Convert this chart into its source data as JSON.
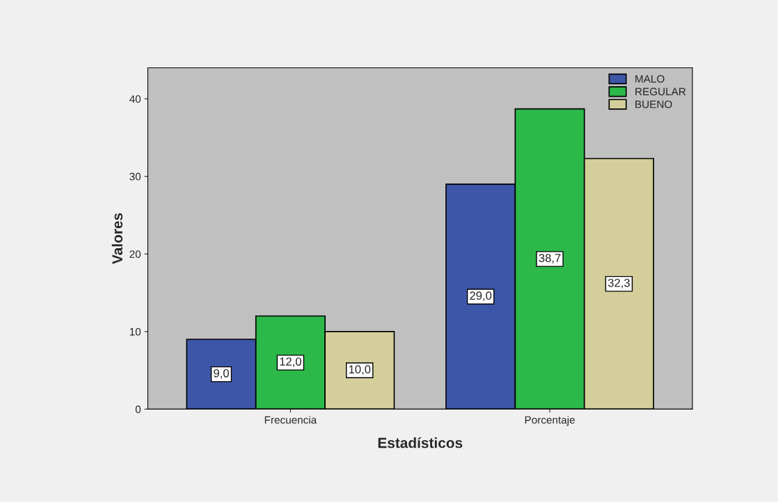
{
  "chart_data": {
    "type": "bar",
    "xlabel": "Estadísticos",
    "ylabel": "Valores",
    "categories": [
      "Frecuencia",
      "Porcentaje"
    ],
    "series": [
      {
        "name": "MALO",
        "color": "#3d56a8",
        "values": [
          9.0,
          29.0
        ],
        "value_labels": [
          "9,0",
          "29,0"
        ]
      },
      {
        "name": "REGULAR",
        "color": "#2db84a",
        "values": [
          12.0,
          38.7
        ],
        "value_labels": [
          "12,0",
          "38,7"
        ]
      },
      {
        "name": "BUENO",
        "color": "#d4cf9a",
        "values": [
          10.0,
          32.3
        ],
        "value_labels": [
          "10,0",
          "32,3"
        ]
      }
    ],
    "ylim": [
      0,
      44
    ],
    "yticks": [
      0,
      10,
      20,
      30,
      40
    ],
    "grid": false,
    "legend": "top right"
  }
}
